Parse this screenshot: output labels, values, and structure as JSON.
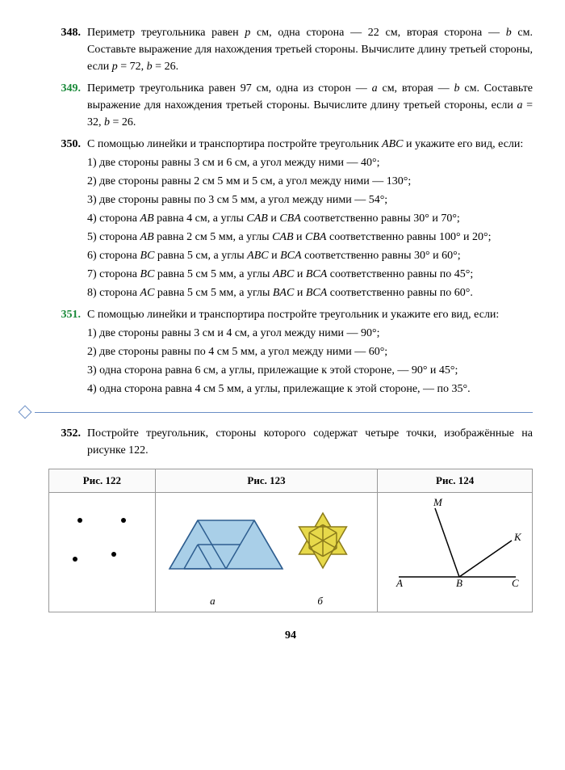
{
  "problems": [
    {
      "num": "348.",
      "green": false,
      "paras": [
        "Периметр треугольника равен <span class='italic'>p</span> см, одна сторона — 22 см, вторая сторона — <span class='italic'>b</span> см. Составьте выражение для нахождения третьей стороны. Вычислите длину третьей стороны, если <span class='italic'>p</span> = 72, <span class='italic'>b</span> = 26."
      ]
    },
    {
      "num": "349.",
      "green": true,
      "paras": [
        "Периметр треугольника равен 97 см, одна из сторон — <span class='italic'>a</span> см, вторая — <span class='italic'>b</span> см. Составьте выражение для нахождения третьей стороны. Вычислите длину третьей стороны, если <span class='italic'>a</span> = 32, <span class='italic'>b</span> = 26."
      ]
    },
    {
      "num": "350.",
      "green": false,
      "paras": [
        "С помощью линейки и транспортира постройте треугольник <span class='italic'>ABC</span> и укажите его вид, если:",
        "1) две стороны равны 3 см и 6 см, а угол между ними — 40°;",
        "2) две стороны равны 2 см 5 мм и 5 см, а угол между ними — 130°;",
        "3) две стороны равны по 3 см 5 мм, а угол между ними — 54°;",
        "4) сторона <span class='italic'>AB</span> равна 4 см, а углы <span class='italic'>CAB</span> и <span class='italic'>CBA</span> соответственно равны 30° и 70°;",
        "5) сторона <span class='italic'>AB</span> равна 2 см 5 мм, а углы <span class='italic'>CAB</span> и <span class='italic'>CBA</span> соответственно равны 100° и 20°;",
        "6) сторона <span class='italic'>BC</span> равна 5 см, а углы <span class='italic'>ABC</span> и <span class='italic'>BCA</span> соответственно равны 30° и 60°;",
        "7) сторона <span class='italic'>BC</span> равна 5 см 5 мм, а углы <span class='italic'>ABC</span> и <span class='italic'>BCA</span> соответственно равны по 45°;",
        "8) сторона <span class='italic'>AC</span> равна 5 см 5 мм, а углы <span class='italic'>BAC</span> и <span class='italic'>BCA</span> соответственно равны по 60°."
      ]
    },
    {
      "num": "351.",
      "green": true,
      "paras": [
        "С помощью линейки и транспортира постройте треугольник и укажите его вид, если:",
        "1) две стороны равны 3 см и 4 см, а угол между ними — 90°;",
        "2) две стороны равны по 4 см 5 мм, а угол между ними — 60°;",
        "3) одна сторона равна 6 см, а углы, прилежащие к этой стороне, — 90° и 45°;",
        "4) одна сторона равна 4 см 5 мм, а углы, прилежащие к этой стороне, — по 35°."
      ]
    }
  ],
  "problem352": {
    "num": "352.",
    "text": "Постройте треугольник, стороны которого содержат четыре точки, изображённые на рисунке 122."
  },
  "fig_headers": [
    "Рис. 122",
    "Рис. 123",
    "Рис. 124"
  ],
  "fig123_labels": {
    "a": "а",
    "b": "б"
  },
  "fig124_labels": {
    "M": "M",
    "K": "K",
    "A": "A",
    "B": "B",
    "C": "C"
  },
  "page_number": "94",
  "colors": {
    "trapezoid_fill": "#a9cfe8",
    "trapezoid_stroke": "#2d5d8f",
    "star_fill": "#e7d94a",
    "star_stroke": "#8a7a1a",
    "line_stroke": "#000"
  }
}
